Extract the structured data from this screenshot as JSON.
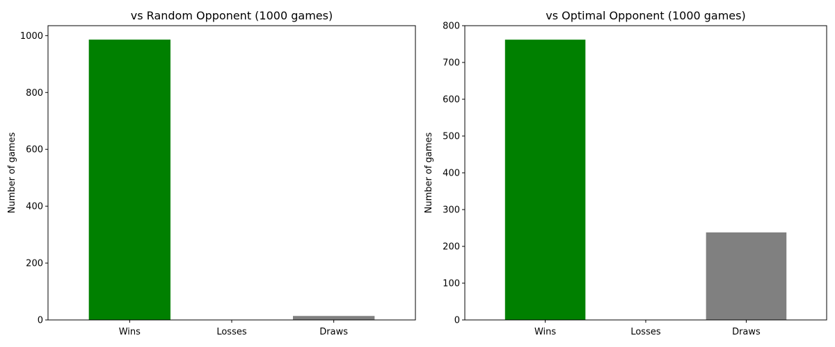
{
  "chart_data": [
    {
      "type": "bar",
      "title": "vs Random Opponent (1000 games)",
      "xlabel": "",
      "ylabel": "Number of games",
      "categories": [
        "Wins",
        "Losses",
        "Draws"
      ],
      "values": [
        986,
        0,
        14
      ],
      "bar_colors": [
        "#008000",
        "#ff0000",
        "#808080"
      ],
      "ylim": [
        0,
        1035
      ],
      "yticks": [
        0,
        200,
        400,
        600,
        800,
        1000
      ],
      "grid": false,
      "legend": "none"
    },
    {
      "type": "bar",
      "title": "vs Optimal Opponent (1000 games)",
      "xlabel": "",
      "ylabel": "Number of games",
      "categories": [
        "Wins",
        "Losses",
        "Draws"
      ],
      "values": [
        762,
        0,
        238
      ],
      "bar_colors": [
        "#008000",
        "#ff0000",
        "#808080"
      ],
      "ylim": [
        0,
        800
      ],
      "yticks": [
        0,
        100,
        200,
        300,
        400,
        500,
        600,
        700,
        800
      ],
      "grid": false,
      "legend": "none"
    }
  ]
}
